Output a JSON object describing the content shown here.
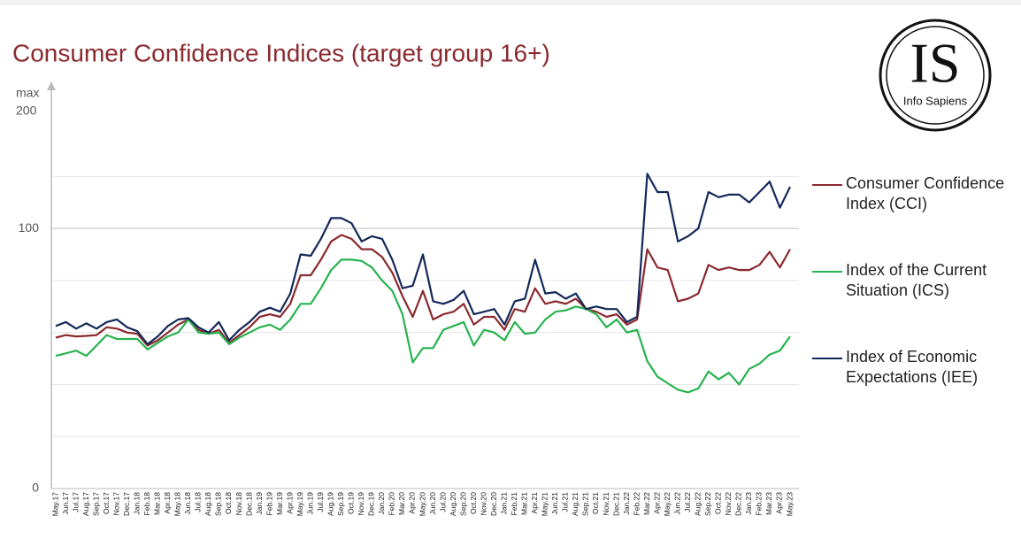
{
  "chart_data": {
    "type": "line",
    "title": "Consumer Confidence Indices (target group 16+)",
    "axis_top": [
      "max",
      "200"
    ],
    "logo": {
      "mark": "IS",
      "name": "Info Sapiens"
    },
    "categories": [
      "May.17",
      "Jun.17",
      "Jul.17",
      "Aug.17",
      "Sep.17",
      "Oct.17",
      "Nov.17",
      "Dec.17",
      "Jan.18",
      "Feb.18",
      "Mar.18",
      "Apr.18",
      "May.18",
      "Jun.18",
      "Jul.18",
      "Aug.18",
      "Sep.18",
      "Oct.18",
      "Nov.18",
      "Dec.18",
      "Jan.19",
      "Feb.19",
      "Mar.19",
      "Apr.19",
      "May.19",
      "Jun.19",
      "Jul.19",
      "Aug.19",
      "Sep.19",
      "Oct.19",
      "Nov.19",
      "Dec.19",
      "Jan.20",
      "Feb.20",
      "Mar.20",
      "Apr.20",
      "May.20",
      "Jun.20",
      "Jul.20",
      "Aug.20",
      "Sep.20",
      "Oct.20",
      "Nov.20",
      "Dec.20",
      "Jan.21",
      "Feb.21",
      "Mar.21",
      "Apr.21",
      "May.21",
      "Jun.21",
      "Jul.21",
      "Aug.21",
      "Sep.21",
      "Oct.21",
      "Nov.21",
      "Dec.21",
      "Jan.22",
      "Feb.22",
      "Mar.22",
      "Apr.22",
      "May.22",
      "Jun.22",
      "Jul.22",
      "Aug.22",
      "Sep.22",
      "Oct.22",
      "Nov.22",
      "Dec.22",
      "Jan.23",
      "Feb.23",
      "Mar.23",
      "Apr.23",
      "May.23"
    ],
    "series": [
      {
        "name": "Consumer Confidence Index (CCI)",
        "color": "#8b2a2f",
        "values": [
          58,
          59,
          58.5,
          58.7,
          59,
          62,
          61.5,
          60,
          59.5,
          55,
          57,
          60,
          63,
          65,
          61,
          59.5,
          61,
          56,
          59,
          62,
          66,
          67,
          66,
          71,
          82,
          82,
          88,
          95,
          97.5,
          96,
          92,
          92,
          89,
          83,
          74,
          66,
          76,
          65,
          67,
          68,
          71,
          63,
          66,
          66,
          61,
          69,
          68,
          77,
          71,
          72,
          71,
          73,
          69,
          68,
          66,
          67,
          63,
          65,
          92,
          85,
          84,
          72,
          73,
          75,
          86,
          84,
          85,
          84,
          84,
          86,
          91,
          85,
          92
        ]
      },
      {
        "name": "Index of the Current Situation (ICS)",
        "color": "#27b34f",
        "values": [
          51,
          52,
          53,
          51,
          55,
          59,
          57.5,
          57.5,
          57.5,
          53.5,
          56,
          58.5,
          60,
          65,
          60,
          59.5,
          60,
          55.5,
          58,
          60,
          62,
          63,
          61,
          65,
          71,
          71,
          77,
          84,
          88,
          88,
          87.5,
          85,
          80,
          76,
          67,
          48.5,
          54,
          54,
          61,
          62.5,
          64,
          55,
          61,
          60,
          57,
          64,
          59.5,
          60,
          65,
          68,
          68.5,
          70,
          69,
          67,
          62,
          65,
          60,
          61,
          49,
          43,
          40.5,
          38,
          37,
          38.5,
          45,
          42,
          44.5,
          40,
          46,
          48,
          51.5,
          53,
          58.5
        ]
      },
      {
        "name": "Index of Economic Expectations (IEE)",
        "color": "#14285a",
        "values": [
          62.5,
          64,
          61.5,
          63.5,
          61.5,
          64,
          65,
          62,
          60.5,
          55.5,
          58.5,
          62.5,
          65,
          65.5,
          62,
          60,
          64,
          57,
          61,
          64,
          68,
          69.5,
          68,
          75,
          90,
          89.5,
          96,
          104,
          104,
          102,
          95,
          97,
          96,
          88,
          77,
          78,
          90,
          72,
          71,
          72.5,
          76,
          67,
          68,
          69,
          63,
          72,
          73,
          88,
          75,
          75.5,
          73,
          75,
          69,
          70,
          69,
          69,
          64,
          66,
          121,
          114,
          114,
          95,
          97,
          100,
          114,
          112,
          113,
          113,
          110,
          114,
          118,
          108,
          116
        ]
      }
    ],
    "ylim": [
      0,
      155.5
    ],
    "yticks": [
      0,
      100
    ],
    "grid_lines": [
      20,
      40,
      60,
      80,
      100,
      120
    ],
    "grid": true
  }
}
